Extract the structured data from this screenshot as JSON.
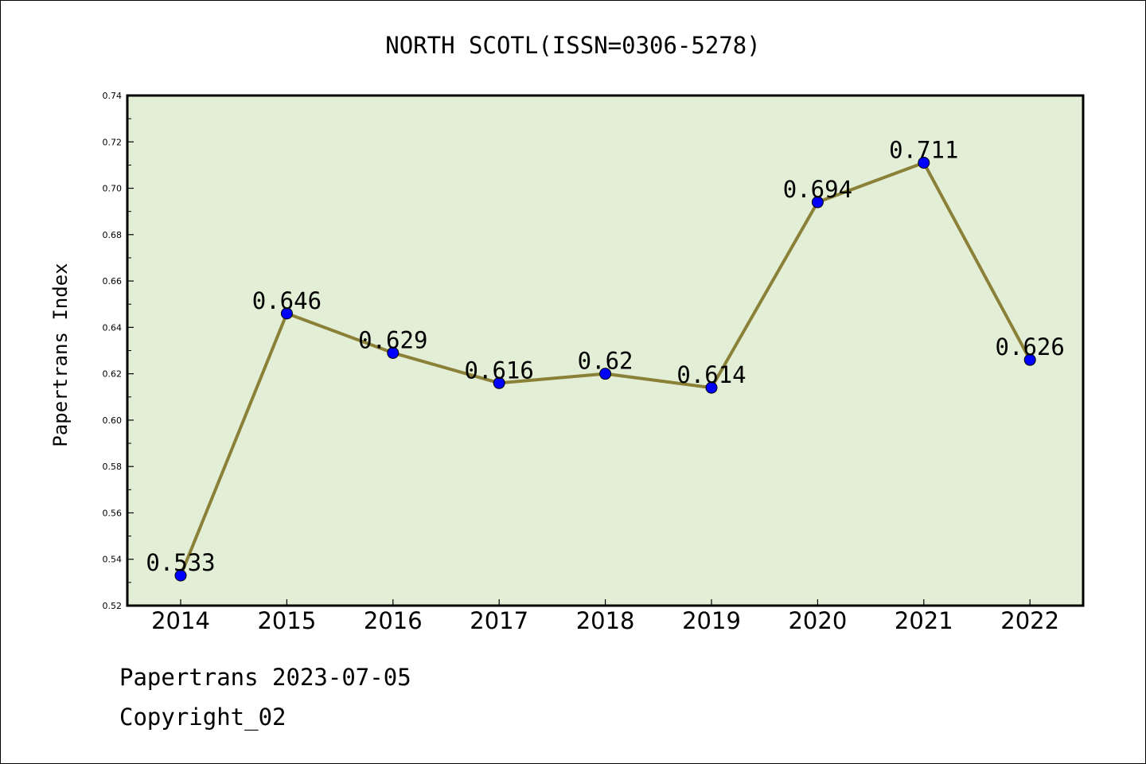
{
  "chart_data": {
    "type": "line",
    "title": "NORTH SCOTL(ISSN=0306-5278)",
    "xlabel": "",
    "ylabel": "Papertrans Index",
    "categories": [
      "2014",
      "2015",
      "2016",
      "2017",
      "2018",
      "2019",
      "2020",
      "2021",
      "2022"
    ],
    "series": [
      {
        "values": [
          0.533,
          0.646,
          0.629,
          0.616,
          0.62,
          0.614,
          0.694,
          0.711,
          0.626
        ],
        "labels": [
          "0.533",
          "0.646",
          "0.629",
          "0.616",
          "0.62",
          "0.614",
          "0.694",
          "0.711",
          "0.626"
        ]
      }
    ],
    "ylim": [
      0.52,
      0.74
    ],
    "yticks": [
      "0.52",
      "0.54",
      "0.56",
      "0.58",
      "0.60",
      "0.62",
      "0.64",
      "0.66",
      "0.68",
      "0.70",
      "0.72",
      "0.74"
    ],
    "grid": false,
    "legend": "none",
    "colors": {
      "plot_background": "#e2efd6",
      "line": "#8b8037",
      "marker": "#0000ff"
    }
  },
  "footer": {
    "line1": "Papertrans 2023-07-05",
    "line2": "Copyright_02"
  }
}
